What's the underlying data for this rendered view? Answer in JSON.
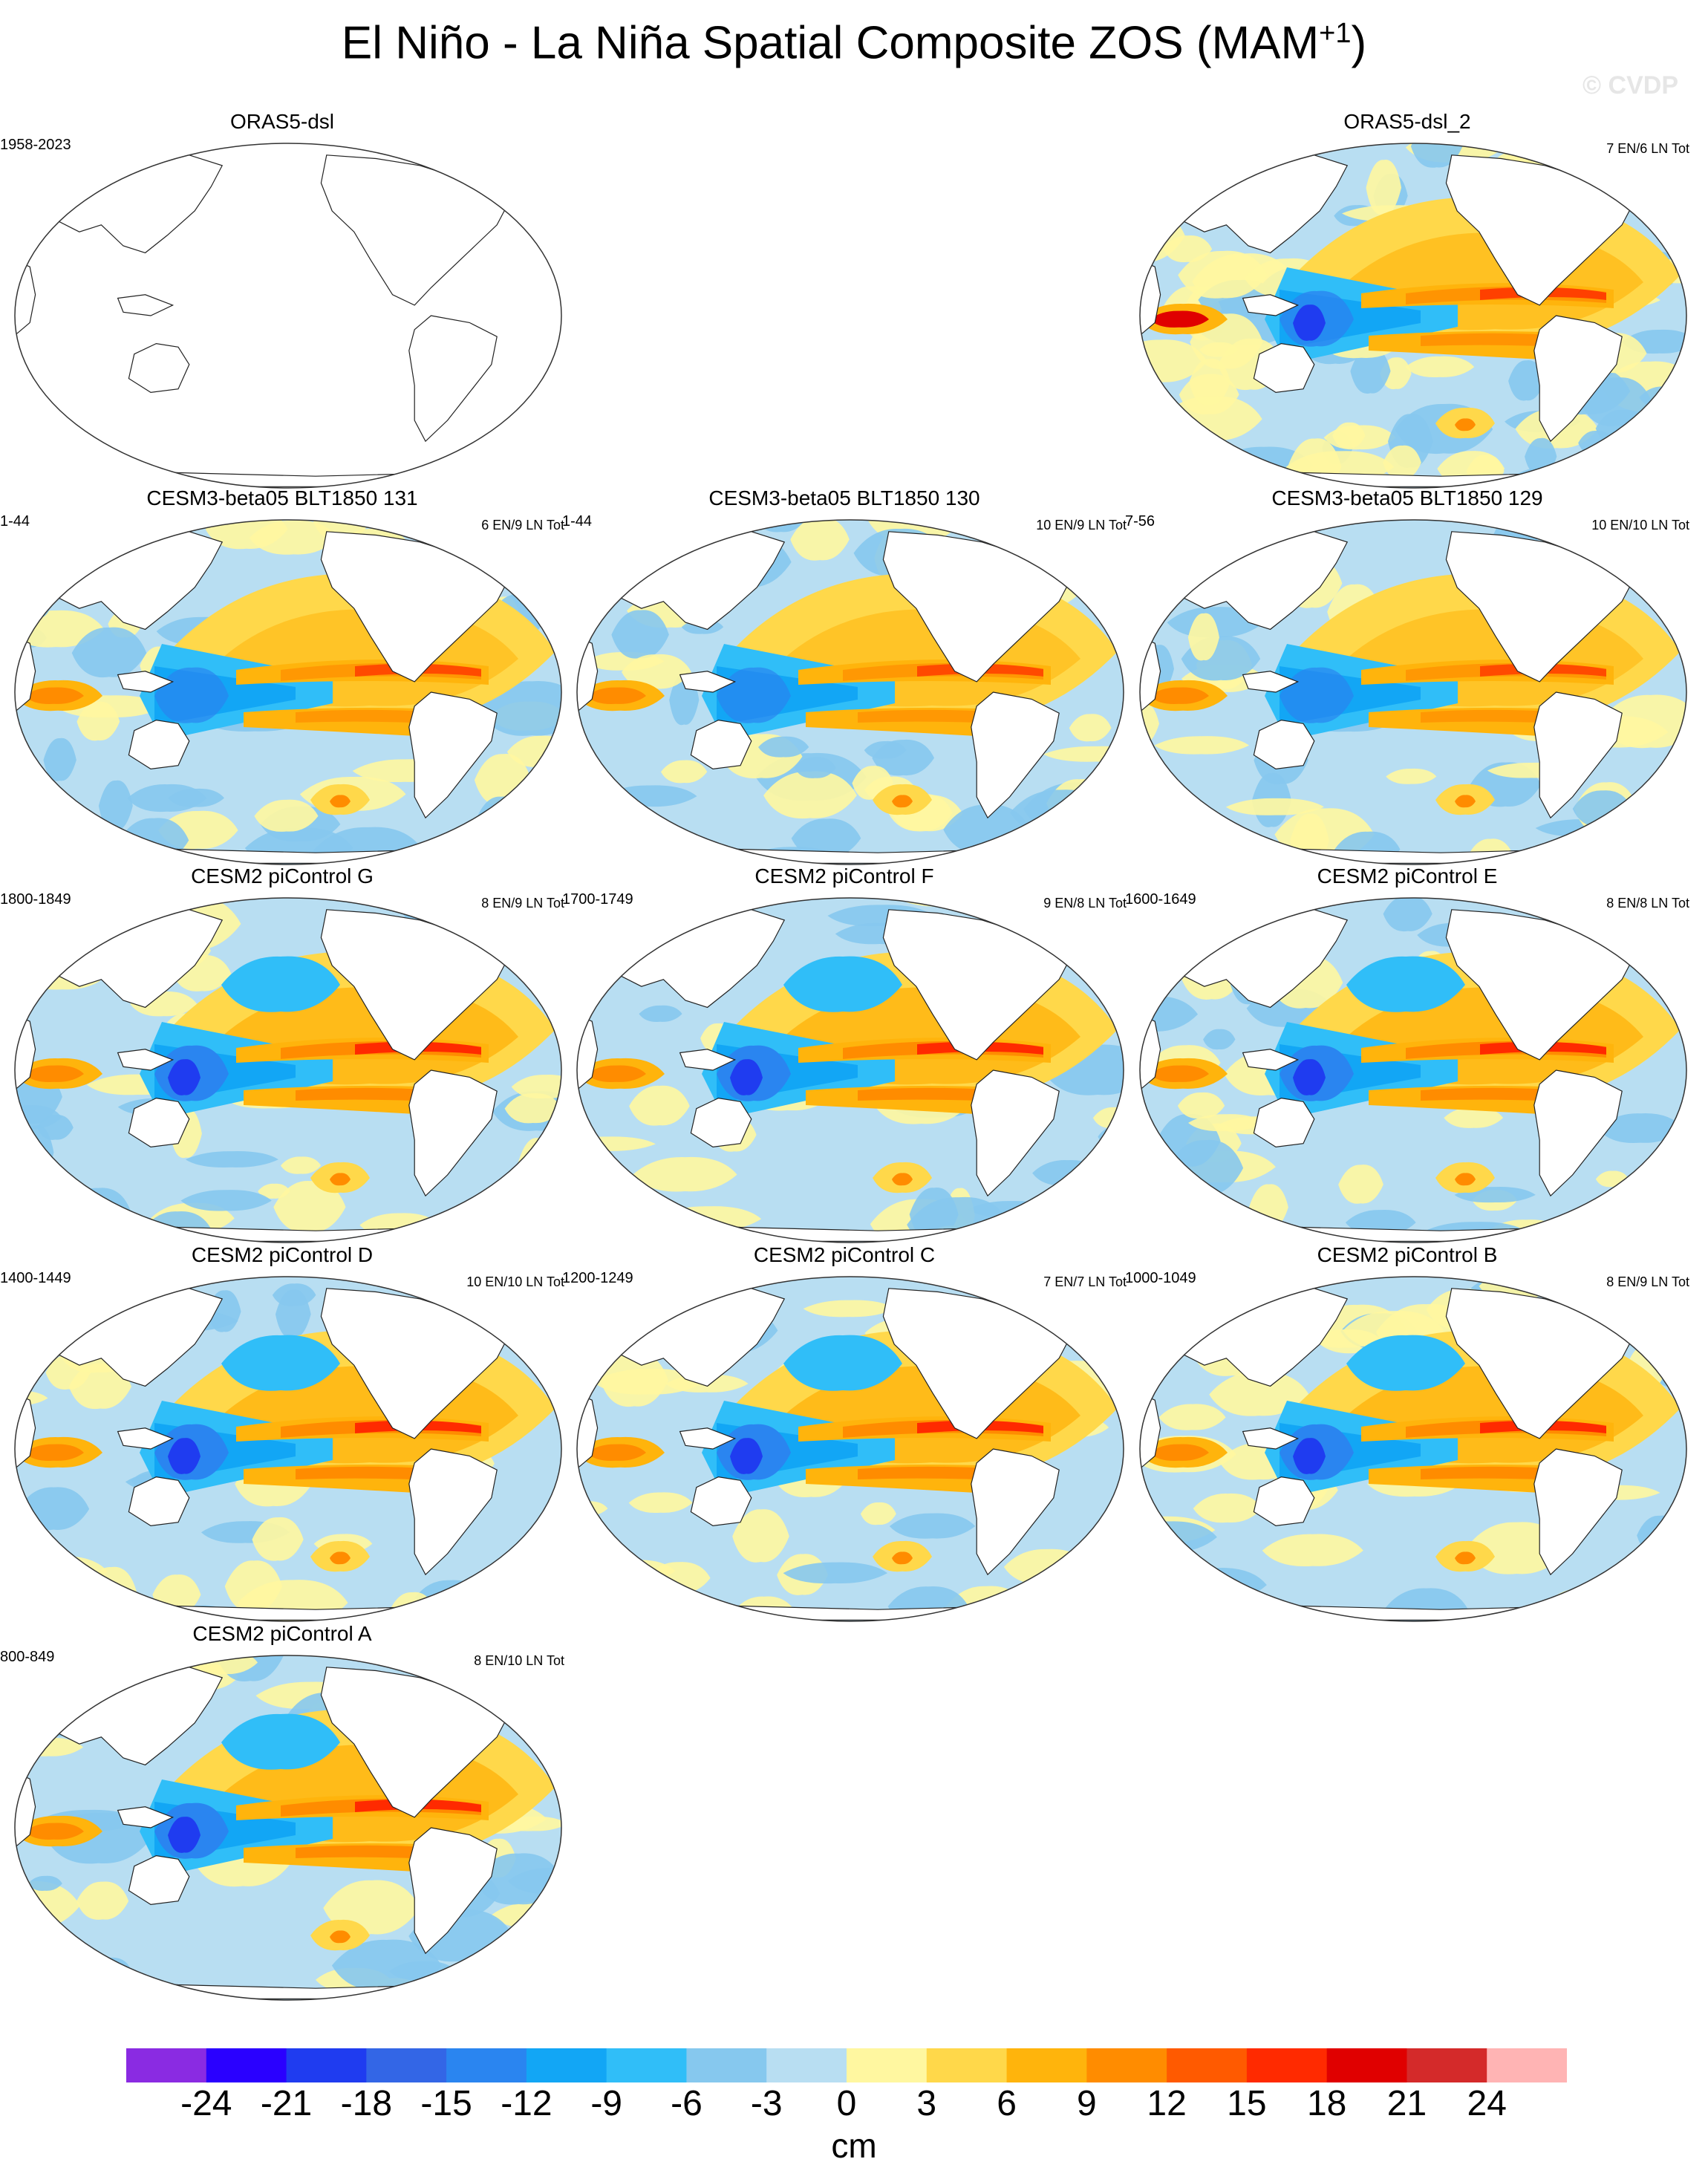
{
  "figure": {
    "title": "El Niño - La Niña Spatial Composite ZOS (MAM",
    "title_sup": "+1",
    "title_close": ")",
    "watermark": "© CVDP"
  },
  "panels": [
    {
      "title": "ORAS5-dsl",
      "range": "1958-2023",
      "count": "",
      "style": "blank"
    },
    {
      "title": "ORAS5-dsl_2",
      "range": "",
      "count": "7 EN/6 LN Tot",
      "style": "noisy"
    },
    {
      "title": "CESM3-beta05 BLT1850 131",
      "range": "1-44",
      "count": "6 EN/9 LN Tot",
      "style": "moderate"
    },
    {
      "title": "CESM3-beta05 BLT1850 130",
      "range": "1-44",
      "count": "10 EN/9 LN Tot",
      "style": "moderate"
    },
    {
      "title": "CESM3-beta05 BLT1850 129",
      "range": "7-56",
      "count": "10 EN/10 LN Tot",
      "style": "moderate"
    },
    {
      "title": "CESM2 piControl G",
      "range": "1800-1849",
      "count": "8 EN/9 LN Tot",
      "style": "strong"
    },
    {
      "title": "CESM2 piControl F",
      "range": "1700-1749",
      "count": "9 EN/8 LN Tot",
      "style": "strong"
    },
    {
      "title": "CESM2 piControl E",
      "range": "1600-1649",
      "count": "8 EN/8 LN Tot",
      "style": "strong"
    },
    {
      "title": "CESM2 piControl D",
      "range": "1400-1449",
      "count": "10 EN/10 LN Tot",
      "style": "strong"
    },
    {
      "title": "CESM2 piControl C",
      "range": "1200-1249",
      "count": "7 EN/7 LN Tot",
      "style": "strong"
    },
    {
      "title": "CESM2 piControl B",
      "range": "1000-1049",
      "count": "8 EN/9 LN Tot",
      "style": "strong"
    },
    {
      "title": "CESM2 piControl A",
      "range": "800-849",
      "count": "8 EN/10 LN Tot",
      "style": "strong"
    }
  ],
  "colorbar": {
    "units": "cm",
    "colors": [
      "#8a2be2",
      "#2a00ff",
      "#1f3cf0",
      "#3366e6",
      "#2a85f0",
      "#12a6f5",
      "#30bef8",
      "#86c8ee",
      "#b8def2",
      "#fff7a0",
      "#ffd84a",
      "#ffb40c",
      "#ff8c00",
      "#ff5a00",
      "#ff2a00",
      "#e00000",
      "#d42a2a",
      "#ffb4b4"
    ],
    "labels": [
      "-24",
      "-21",
      "-18",
      "-15",
      "-12",
      "-9",
      "-6",
      "-3",
      "0",
      "3",
      "6",
      "9",
      "12",
      "15",
      "18",
      "21",
      "24"
    ]
  }
}
